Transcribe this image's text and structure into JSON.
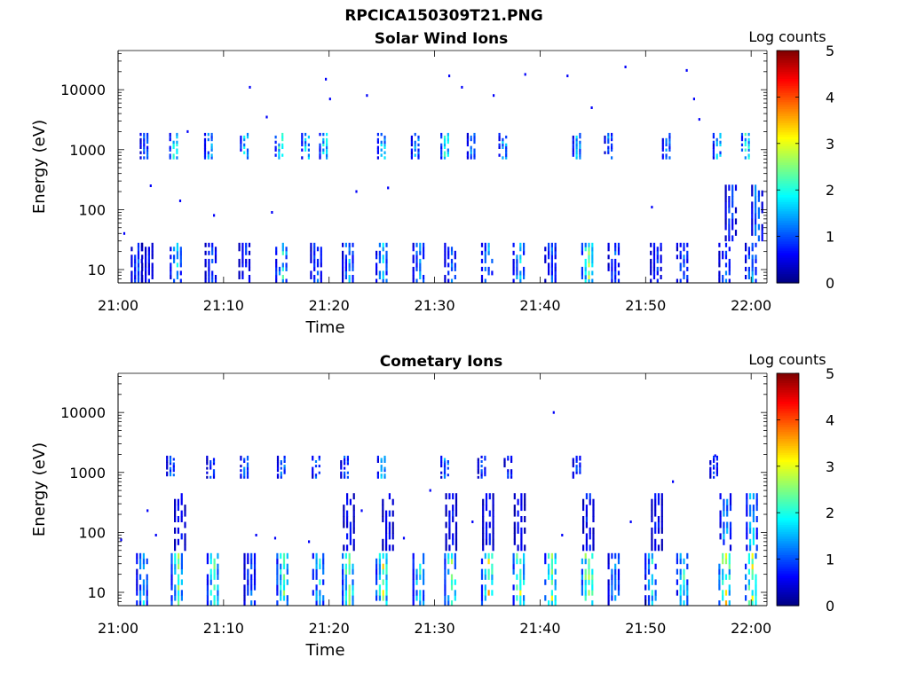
{
  "figure_title": "RPCICA150309T21.PNG",
  "chart_data": [
    {
      "type": "heatmap",
      "title": "Solar Wind Ions",
      "xlabel": "Time",
      "ylabel": "Energy (eV)",
      "yscale": "log",
      "ylim": [
        6,
        45000
      ],
      "x_ticks": [
        "21:00",
        "21:10",
        "21:20",
        "21:30",
        "21:40",
        "21:50",
        "22:00"
      ],
      "y_ticks": [
        "10",
        "100",
        "1000",
        "10000"
      ],
      "x_range_minutes": [
        0,
        61.5
      ],
      "colorbar": {
        "label": "Log counts",
        "min": 0,
        "max": 5,
        "ticks": [
          "0",
          "1",
          "2",
          "3",
          "4",
          "5"
        ]
      },
      "colormap": [
        "#00007f",
        "#0000ff",
        "#007fff",
        "#00ffff",
        "#7fff7f",
        "#ffff00",
        "#ff7f00",
        "#ff0000",
        "#7f0000"
      ],
      "low_band_energy_eV": [
        6,
        28
      ],
      "low_band_bursts": [
        {
          "t": 1.8,
          "level": 1.2
        },
        {
          "t": 2.8,
          "level": 0.8
        },
        {
          "t": 5.5,
          "level": 1.8
        },
        {
          "t": 8.8,
          "level": 1.1
        },
        {
          "t": 12.0,
          "level": 0.9
        },
        {
          "t": 15.5,
          "level": 2.2
        },
        {
          "t": 18.8,
          "level": 1.2
        },
        {
          "t": 21.8,
          "level": 1.6
        },
        {
          "t": 25.0,
          "level": 1.7
        },
        {
          "t": 28.5,
          "level": 1.5
        },
        {
          "t": 31.5,
          "level": 1.4
        },
        {
          "t": 35.0,
          "level": 1.6
        },
        {
          "t": 38.0,
          "level": 1.8
        },
        {
          "t": 41.0,
          "level": 1.2
        },
        {
          "t": 44.5,
          "level": 2.8
        },
        {
          "t": 47.0,
          "level": 1.2
        },
        {
          "t": 51.0,
          "level": 1.0
        },
        {
          "t": 53.5,
          "level": 1.3
        },
        {
          "t": 57.5,
          "level": 1.3
        },
        {
          "t": 60.0,
          "level": 1.5
        }
      ],
      "mid_band_energy_eV": [
        700,
        1900
      ],
      "mid_band_bursts": [
        {
          "t": 2.5,
          "level": 1.5
        },
        {
          "t": 5.3,
          "level": 2.4
        },
        {
          "t": 8.6,
          "level": 1.9
        },
        {
          "t": 12.0,
          "level": 2.2
        },
        {
          "t": 15.3,
          "level": 2.6
        },
        {
          "t": 17.8,
          "level": 2.1
        },
        {
          "t": 19.5,
          "level": 2.4
        },
        {
          "t": 25.0,
          "level": 2.2
        },
        {
          "t": 28.2,
          "level": 1.8
        },
        {
          "t": 31.0,
          "level": 2.5
        },
        {
          "t": 33.5,
          "level": 1.6
        },
        {
          "t": 36.5,
          "level": 1.9
        },
        {
          "t": 43.5,
          "level": 2.0
        },
        {
          "t": 46.5,
          "level": 1.6
        },
        {
          "t": 52.0,
          "level": 1.7
        },
        {
          "t": 56.8,
          "level": 2.1
        },
        {
          "t": 59.5,
          "level": 2.5
        }
      ],
      "upper_band_energy_eV": [
        30,
        260
      ],
      "upper_band_bursts": [
        {
          "t": 58.0,
          "level": 1.2
        },
        {
          "t": 60.5,
          "level": 1.6
        }
      ],
      "sparse_points": [
        {
          "t": 0.5,
          "e": 40
        },
        {
          "t": 3.0,
          "e": 250
        },
        {
          "t": 5.8,
          "e": 140
        },
        {
          "t": 6.5,
          "e": 2000
        },
        {
          "t": 9.0,
          "e": 80
        },
        {
          "t": 12.4,
          "e": 11000
        },
        {
          "t": 14.0,
          "e": 3500
        },
        {
          "t": 14.5,
          "e": 90
        },
        {
          "t": 19.6,
          "e": 15000
        },
        {
          "t": 20.0,
          "e": 7000
        },
        {
          "t": 22.5,
          "e": 200
        },
        {
          "t": 23.5,
          "e": 8000
        },
        {
          "t": 25.5,
          "e": 230
        },
        {
          "t": 31.3,
          "e": 17000
        },
        {
          "t": 32.5,
          "e": 11000
        },
        {
          "t": 35.5,
          "e": 8000
        },
        {
          "t": 38.5,
          "e": 18000
        },
        {
          "t": 42.5,
          "e": 17000
        },
        {
          "t": 44.8,
          "e": 5000
        },
        {
          "t": 48.0,
          "e": 24000
        },
        {
          "t": 50.5,
          "e": 110
        },
        {
          "t": 53.8,
          "e": 21000
        },
        {
          "t": 54.5,
          "e": 7000
        },
        {
          "t": 55.0,
          "e": 3200
        }
      ]
    },
    {
      "type": "heatmap",
      "title": "Cometary Ions",
      "xlabel": "Time",
      "ylabel": "Energy (eV)",
      "yscale": "log",
      "ylim": [
        6,
        45000
      ],
      "x_ticks": [
        "21:00",
        "21:10",
        "21:20",
        "21:30",
        "21:40",
        "21:50",
        "22:00"
      ],
      "y_ticks": [
        "10",
        "100",
        "1000",
        "10000"
      ],
      "x_range_minutes": [
        0,
        61.5
      ],
      "colorbar": {
        "label": "Log counts",
        "min": 0,
        "max": 5,
        "ticks": [
          "0",
          "1",
          "2",
          "3",
          "4",
          "5"
        ]
      },
      "colormap": [
        "#00007f",
        "#0000ff",
        "#007fff",
        "#00ffff",
        "#7fff7f",
        "#ffff00",
        "#ff7f00",
        "#ff0000",
        "#7f0000"
      ],
      "low_band_energy_eV": [
        6,
        45
      ],
      "low_band_bursts": [
        {
          "t": 2.3,
          "level": 1.8
        },
        {
          "t": 5.6,
          "level": 2.6
        },
        {
          "t": 9.0,
          "level": 2.5
        },
        {
          "t": 12.5,
          "level": 1.2
        },
        {
          "t": 15.6,
          "level": 2.8
        },
        {
          "t": 19.0,
          "level": 1.9
        },
        {
          "t": 21.8,
          "level": 3.0
        },
        {
          "t": 25.0,
          "level": 3.1
        },
        {
          "t": 28.5,
          "level": 2.3
        },
        {
          "t": 31.5,
          "level": 2.7
        },
        {
          "t": 35.0,
          "level": 3.3
        },
        {
          "t": 38.0,
          "level": 3.0
        },
        {
          "t": 41.0,
          "level": 2.9
        },
        {
          "t": 44.5,
          "level": 3.4
        },
        {
          "t": 47.0,
          "level": 1.6
        },
        {
          "t": 50.5,
          "level": 1.9
        },
        {
          "t": 53.5,
          "level": 2.3
        },
        {
          "t": 57.5,
          "level": 3.4
        },
        {
          "t": 60.0,
          "level": 3.2
        }
      ],
      "mid_band_energy_eV": [
        800,
        1900
      ],
      "mid_band_bursts": [
        {
          "t": 5.0,
          "level": 1.4
        },
        {
          "t": 8.8,
          "level": 1.2
        },
        {
          "t": 12.0,
          "level": 1.6
        },
        {
          "t": 15.5,
          "level": 1.7
        },
        {
          "t": 18.8,
          "level": 1.6
        },
        {
          "t": 21.5,
          "level": 1.3
        },
        {
          "t": 25.0,
          "level": 1.9
        },
        {
          "t": 31.0,
          "level": 1.7
        },
        {
          "t": 34.5,
          "level": 1.2
        },
        {
          "t": 37.0,
          "level": 1.1
        },
        {
          "t": 43.5,
          "level": 1.2
        },
        {
          "t": 56.5,
          "level": 1.2
        }
      ],
      "upper_band_energy_eV": [
        50,
        450
      ],
      "upper_band_bursts": [
        {
          "t": 5.8,
          "level": 0.9
        },
        {
          "t": 21.8,
          "level": 0.9
        },
        {
          "t": 25.5,
          "level": 0.9
        },
        {
          "t": 31.5,
          "level": 0.9
        },
        {
          "t": 35.0,
          "level": 1.0
        },
        {
          "t": 38.0,
          "level": 0.8
        },
        {
          "t": 44.5,
          "level": 1.0
        },
        {
          "t": 51.0,
          "level": 0.9
        },
        {
          "t": 57.5,
          "level": 1.8
        },
        {
          "t": 60.0,
          "level": 2.0
        }
      ],
      "sparse_points": [
        {
          "t": 0.2,
          "e": 75
        },
        {
          "t": 2.7,
          "e": 230
        },
        {
          "t": 3.5,
          "e": 90
        },
        {
          "t": 13.0,
          "e": 90
        },
        {
          "t": 14.8,
          "e": 80
        },
        {
          "t": 18.0,
          "e": 70
        },
        {
          "t": 23.0,
          "e": 230
        },
        {
          "t": 27.0,
          "e": 80
        },
        {
          "t": 29.5,
          "e": 500
        },
        {
          "t": 33.5,
          "e": 150
        },
        {
          "t": 41.2,
          "e": 10000
        },
        {
          "t": 42.0,
          "e": 90
        },
        {
          "t": 48.5,
          "e": 150
        },
        {
          "t": 52.5,
          "e": 700
        },
        {
          "t": 56.5,
          "e": 1900
        }
      ]
    }
  ]
}
